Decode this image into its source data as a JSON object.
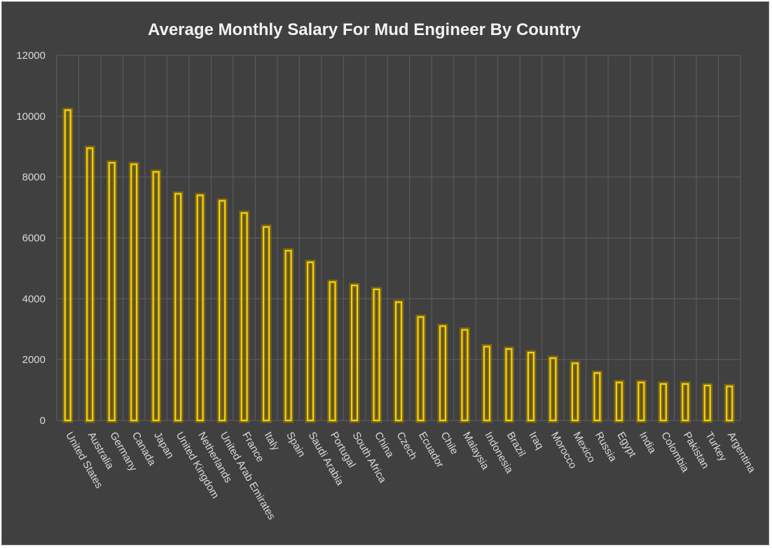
{
  "chart_data": {
    "type": "bar",
    "title": "Average Monthly Salary For Mud Engineer By Country",
    "xlabel": "",
    "ylabel": "",
    "ylim": [
      0,
      12000
    ],
    "yticks": [
      0,
      2000,
      4000,
      6000,
      8000,
      10000,
      12000
    ],
    "grid": true,
    "categories": [
      "United States",
      "Australia",
      "Germany",
      "Canada",
      "Japan",
      "United Kingdom",
      "Netherlands",
      "United Arab Emirates",
      "France",
      "Italy",
      "Spain",
      "Saudi Arabia",
      "Portugal",
      "South Africa",
      "China",
      "Czech",
      "Ecuador",
      "Chile",
      "Malaysia",
      "Indonesia",
      "Brazil",
      "Iraq",
      "Morocco",
      "Mexico",
      "Russia",
      "Egypt",
      "India",
      "Colombia",
      "Pakistan",
      "Turkey",
      "Argentina"
    ],
    "values": [
      10200,
      8950,
      8470,
      8420,
      8170,
      7450,
      7400,
      7220,
      6820,
      6360,
      5580,
      5200,
      4550,
      4440,
      4310,
      3890,
      3400,
      3100,
      2980,
      2430,
      2350,
      2230,
      2050,
      1880,
      1560,
      1250,
      1250,
      1200,
      1200,
      1150,
      1120
    ],
    "colors": {
      "bar": "#ffd200",
      "background": "#404040",
      "grid": "#5f5f5f",
      "text": "#d9d9d9"
    }
  }
}
